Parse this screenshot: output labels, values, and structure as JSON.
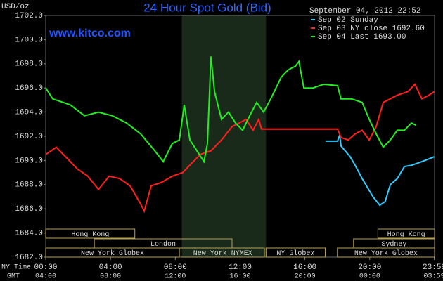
{
  "chart_data": {
    "type": "line",
    "title": "24 Hour Spot Gold (Bid)",
    "unit_label": "USD/oz",
    "website": "www.kitco.com",
    "timestamp": "September 04, 2012 22:52",
    "x_axis_label": "NY Time",
    "x2_axis_label": "GMT",
    "xlim": [
      0,
      24
    ],
    "xticks": [
      {
        "value": 0,
        "label": "00:00"
      },
      {
        "value": 4,
        "label": "04:00"
      },
      {
        "value": 8,
        "label": "08:00"
      },
      {
        "value": 12,
        "label": "12:00"
      },
      {
        "value": 16,
        "label": "16:00"
      },
      {
        "value": 20,
        "label": "20:00"
      },
      {
        "value": 23.98,
        "label": "23:59"
      }
    ],
    "gmt_labels": [
      "04:00",
      "08:00",
      "12:00",
      "16:00",
      "20:00",
      "00:00",
      "03:59"
    ],
    "ylim": [
      1682,
      1702
    ],
    "yticks": [
      {
        "value": 1682,
        "label": "1682.0"
      },
      {
        "value": 1684,
        "label": "1684.0"
      },
      {
        "value": 1686,
        "label": "1686.0"
      },
      {
        "value": 1688,
        "label": "1688.0"
      },
      {
        "value": 1690,
        "label": "1690.0"
      },
      {
        "value": 1692,
        "label": "1692.0"
      },
      {
        "value": 1694,
        "label": "1694.0"
      },
      {
        "value": 1696,
        "label": "1696.0"
      },
      {
        "value": 1698,
        "label": "1698.0"
      },
      {
        "value": 1700,
        "label": "1700.0"
      },
      {
        "value": 1702,
        "label": "1702.0"
      }
    ],
    "shaded_range": [
      8.4,
      13.6
    ],
    "sessions": [
      {
        "name": "Hong Kong",
        "row": 0,
        "start": 0,
        "end": 5.5
      },
      {
        "name": "Hong Kong",
        "row": 0,
        "start": 20.5,
        "end": 24
      },
      {
        "name": "London",
        "row": 1,
        "start": 3,
        "end": 11.5
      },
      {
        "name": "Sydney",
        "row": 1,
        "start": 19,
        "end": 24
      },
      {
        "name": "New York Globex",
        "row": 2,
        "start": 0,
        "end": 8.25
      },
      {
        "name": "New York NYMEX",
        "row": 2,
        "start": 8.35,
        "end": 13.5
      },
      {
        "name": "NY Globex",
        "row": 2,
        "start": 13.6,
        "end": 17.25
      },
      {
        "name": "New York Globex",
        "row": 2,
        "start": 18,
        "end": 24
      }
    ],
    "series": [
      {
        "name": "Sep 02 Sunday",
        "color": "#33ccff",
        "x": [
          17.27,
          18.01,
          18.14,
          18.23,
          18.79,
          19.1,
          19.53,
          19.75,
          20.2,
          20.62,
          20.95,
          21.27,
          21.7,
          22.14,
          22.57,
          23.22,
          23.98
        ],
        "values": [
          1691.6,
          1691.6,
          1692.1,
          1691.2,
          1690.3,
          1689.6,
          1688.5,
          1688.0,
          1687.0,
          1686.3,
          1686.6,
          1688.0,
          1688.5,
          1689.5,
          1689.6,
          1689.9,
          1690.3
        ]
      },
      {
        "name": "Sep 03 NY close 1692.60",
        "color": "#ff2020",
        "x": [
          0,
          0.65,
          1.3,
          1.95,
          2.6,
          3.26,
          3.91,
          4.56,
          5.21,
          5.86,
          6.08,
          6.51,
          7.16,
          7.81,
          8.46,
          9.11,
          9.55,
          10.2,
          10.85,
          11.5,
          11.94,
          12.37,
          12.8,
          13.15,
          13.32,
          18.01,
          18.23,
          18.66,
          19.1,
          19.53,
          19.97,
          20.4,
          20.83,
          21.27,
          21.7,
          22.35,
          22.79,
          23.22,
          23.65,
          23.98
        ],
        "values": [
          1690.5,
          1691.1,
          1690.2,
          1689.3,
          1688.7,
          1687.6,
          1688.7,
          1688.5,
          1687.9,
          1686.4,
          1685.8,
          1687.9,
          1688.2,
          1688.7,
          1689.0,
          1689.9,
          1690.5,
          1690.8,
          1691.7,
          1692.8,
          1693.1,
          1693.4,
          1692.5,
          1693.4,
          1692.6,
          1692.6,
          1691.9,
          1691.7,
          1692.2,
          1692.5,
          1691.7,
          1692.8,
          1694.8,
          1695.1,
          1695.4,
          1695.7,
          1696.3,
          1695.1,
          1695.4,
          1695.7
        ]
      },
      {
        "name": "Sep 04 Last 1693.00",
        "color": "#22ee22",
        "x": [
          0,
          0.43,
          1.52,
          2.39,
          3.26,
          4.12,
          4.99,
          5.86,
          6.73,
          7.25,
          7.81,
          8.25,
          8.55,
          8.9,
          9.33,
          9.77,
          9.98,
          10.2,
          10.42,
          10.85,
          11.28,
          11.72,
          12.15,
          12.59,
          13.02,
          13.45,
          13.89,
          14.54,
          14.97,
          15.41,
          15.63,
          15.93,
          16.49,
          17.14,
          18.01,
          18.23,
          18.88,
          19.53,
          19.97,
          20.4,
          20.83,
          21.27,
          21.7,
          22.14,
          22.57,
          22.87
        ],
        "values": [
          1696.0,
          1695.1,
          1694.6,
          1693.7,
          1694.0,
          1693.7,
          1693.1,
          1692.2,
          1690.8,
          1689.9,
          1691.4,
          1691.7,
          1694.6,
          1691.7,
          1690.8,
          1689.9,
          1691.4,
          1698.6,
          1695.7,
          1693.4,
          1694.0,
          1693.1,
          1692.5,
          1693.7,
          1694.8,
          1694.0,
          1695.1,
          1696.9,
          1697.5,
          1697.8,
          1698.2,
          1696.0,
          1696.0,
          1696.3,
          1696.2,
          1695.1,
          1695.1,
          1694.8,
          1693.4,
          1692.2,
          1691.1,
          1691.7,
          1692.5,
          1692.5,
          1693.1,
          1692.9
        ]
      }
    ]
  }
}
